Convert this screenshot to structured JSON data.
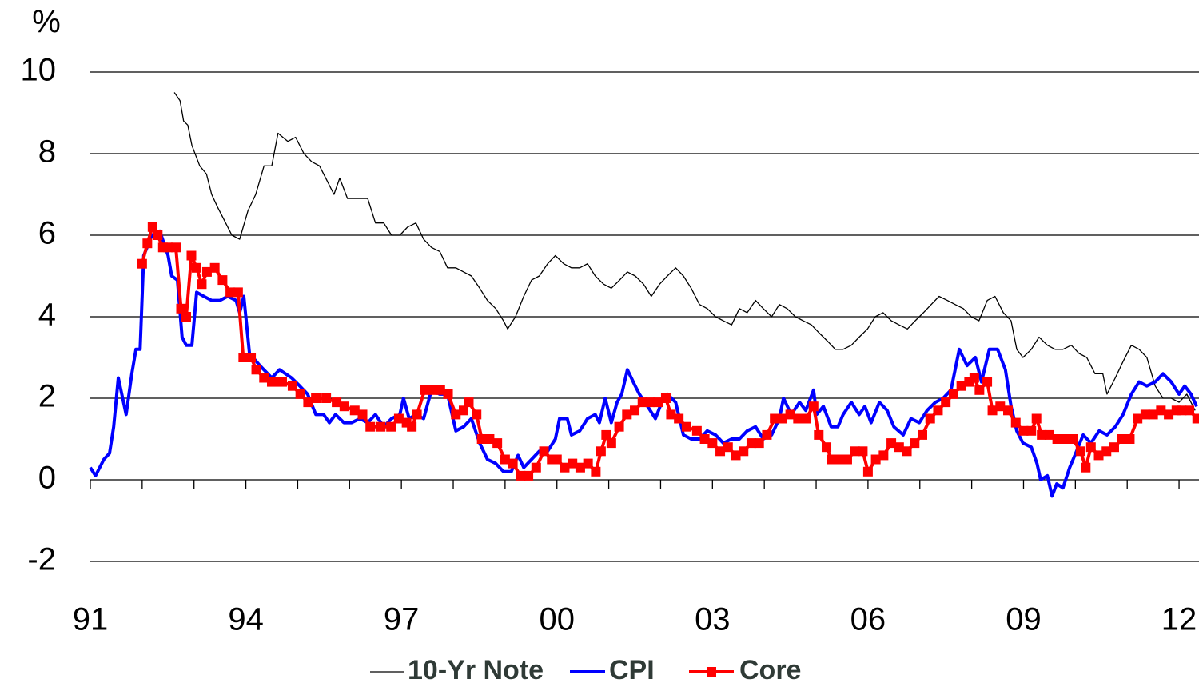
{
  "chart_data": {
    "type": "line",
    "y_unit": "%",
    "xlim": [
      1991,
      2012.4
    ],
    "xticks": [
      {
        "value": 1991,
        "label": "91"
      },
      {
        "value": 1994,
        "label": "94"
      },
      {
        "value": 1997,
        "label": "97"
      },
      {
        "value": 2000,
        "label": "00"
      },
      {
        "value": 2003,
        "label": "03"
      },
      {
        "value": 2006,
        "label": "06"
      },
      {
        "value": 2009,
        "label": "09"
      },
      {
        "value": 2012,
        "label": "12"
      }
    ],
    "x_minor_ticks": [
      1991,
      1992,
      1993,
      1994,
      1995,
      1996,
      1997,
      1998,
      1999,
      2000,
      2001,
      2002,
      2003,
      2004,
      2005,
      2006,
      2007,
      2008,
      2009,
      2010,
      2011,
      2012
    ],
    "ylim": [
      -2,
      10
    ],
    "yticks": [
      -2,
      0,
      2,
      4,
      6,
      8,
      10
    ],
    "grid": true,
    "series": [
      {
        "name": "10-Yr Note",
        "color": "#000000",
        "line_width": 1.3,
        "marker": false,
        "x": [
          1992.62,
          1992.73,
          1992.8,
          1992.88,
          1992.96,
          1993.11,
          1993.24,
          1993.34,
          1993.45,
          1993.57,
          1993.73,
          1993.88,
          1994.04,
          1994.19,
          1994.35,
          1994.5,
          1994.62,
          1994.81,
          1994.96,
          1995.12,
          1995.27,
          1995.42,
          1995.58,
          1995.7,
          1995.81,
          1995.96,
          1996.2,
          1996.35,
          1996.5,
          1996.66,
          1996.81,
          1996.97,
          1997.12,
          1997.28,
          1997.43,
          1997.58,
          1997.74,
          1997.89,
          1998.05,
          1998.2,
          1998.35,
          1998.51,
          1998.66,
          1998.82,
          1998.97,
          1999.05,
          1999.2,
          1999.36,
          1999.51,
          1999.66,
          1999.82,
          1999.97,
          2000.13,
          2000.28,
          2000.44,
          2000.59,
          2000.74,
          2000.9,
          2001.05,
          2001.21,
          2001.36,
          2001.51,
          2001.67,
          2001.82,
          2001.98,
          2002.13,
          2002.29,
          2002.44,
          2002.59,
          2002.75,
          2002.9,
          2003.06,
          2003.21,
          2003.37,
          2003.52,
          2003.67,
          2003.83,
          2003.98,
          2004.14,
          2004.29,
          2004.44,
          2004.6,
          2004.75,
          2004.91,
          2005.06,
          2005.22,
          2005.37,
          2005.52,
          2005.68,
          2005.83,
          2005.99,
          2006.14,
          2006.29,
          2006.45,
          2006.6,
          2006.76,
          2006.91,
          2007.07,
          2007.22,
          2007.37,
          2007.53,
          2007.68,
          2007.84,
          2007.99,
          2008.14,
          2008.3,
          2008.45,
          2008.61,
          2008.76,
          2008.87,
          2008.99,
          2009.15,
          2009.3,
          2009.46,
          2009.61,
          2009.76,
          2009.92,
          2010.07,
          2010.22,
          2010.38,
          2010.53,
          2010.61,
          2010.77,
          2010.92,
          2011.08,
          2011.23,
          2011.38,
          2011.54,
          2011.69,
          2011.85,
          2012.0,
          2012.15,
          2012.31
        ],
        "values": [
          9.5,
          9.3,
          8.8,
          8.7,
          8.2,
          7.7,
          7.5,
          7.0,
          6.7,
          6.4,
          6.0,
          5.9,
          6.6,
          7.0,
          7.7,
          7.7,
          8.5,
          8.3,
          8.4,
          8.0,
          7.8,
          7.7,
          7.3,
          7.0,
          7.4,
          6.9,
          6.9,
          6.9,
          6.3,
          6.3,
          6.0,
          6.0,
          6.2,
          6.3,
          5.9,
          5.7,
          5.6,
          5.2,
          5.2,
          5.1,
          5.0,
          4.7,
          4.4,
          4.2,
          3.9,
          3.7,
          4.0,
          4.5,
          4.9,
          5.0,
          5.3,
          5.5,
          5.3,
          5.2,
          5.2,
          5.3,
          5.0,
          4.8,
          4.7,
          4.9,
          5.1,
          5.0,
          4.8,
          4.5,
          4.8,
          5.0,
          5.2,
          5.0,
          4.7,
          4.3,
          4.2,
          4.0,
          3.9,
          3.8,
          4.2,
          4.1,
          4.4,
          4.2,
          4.0,
          4.3,
          4.2,
          4.0,
          3.9,
          3.8,
          3.6,
          3.4,
          3.2,
          3.2,
          3.3,
          3.5,
          3.7,
          4.0,
          4.1,
          3.9,
          3.8,
          3.7,
          3.9,
          4.1,
          4.3,
          4.5,
          4.4,
          4.3,
          4.2,
          4.0,
          3.9,
          4.4,
          4.5,
          4.1,
          3.9,
          3.2,
          3.0,
          3.2,
          3.5,
          3.3,
          3.2,
          3.2,
          3.3,
          3.1,
          3.0,
          2.6,
          2.6,
          2.1,
          2.5,
          2.9,
          3.3,
          3.2,
          3.0,
          2.3,
          2.0,
          2.0,
          1.9,
          2.1,
          1.7
        ]
      },
      {
        "name": "CPI",
        "color": "#0000ff",
        "line_width": 4,
        "marker": false,
        "x": [
          1991.0,
          1991.1,
          1991.26,
          1991.37,
          1991.45,
          1991.54,
          1991.69,
          1991.8,
          1991.88,
          1991.96,
          1992.03,
          1992.19,
          1992.34,
          1992.5,
          1992.57,
          1992.68,
          1992.77,
          1992.85,
          1992.96,
          1993.05,
          1993.19,
          1993.34,
          1993.5,
          1993.65,
          1993.81,
          1993.88,
          1993.96,
          1994.07,
          1994.27,
          1994.5,
          1994.65,
          1994.88,
          1995.04,
          1995.19,
          1995.35,
          1995.5,
          1995.61,
          1995.73,
          1995.89,
          1996.04,
          1996.2,
          1996.35,
          1996.5,
          1996.66,
          1996.81,
          1996.97,
          1997.04,
          1997.15,
          1997.28,
          1997.43,
          1997.58,
          1997.74,
          1997.89,
          1998.05,
          1998.2,
          1998.35,
          1998.51,
          1998.66,
          1998.82,
          1998.97,
          1999.12,
          1999.25,
          1999.36,
          1999.51,
          1999.66,
          1999.82,
          1999.97,
          2000.05,
          2000.2,
          2000.28,
          2000.44,
          2000.59,
          2000.74,
          2000.82,
          2000.93,
          2001.05,
          2001.16,
          2001.25,
          2001.36,
          2001.51,
          2001.59,
          2001.75,
          2001.9,
          2002.02,
          2002.13,
          2002.29,
          2002.44,
          2002.59,
          2002.75,
          2002.9,
          2003.06,
          2003.21,
          2003.37,
          2003.52,
          2003.67,
          2003.83,
          2003.98,
          2004.14,
          2004.29,
          2004.37,
          2004.52,
          2004.68,
          2004.8,
          2004.95,
          2005.01,
          2005.14,
          2005.29,
          2005.42,
          2005.52,
          2005.68,
          2005.83,
          2005.94,
          2006.06,
          2006.22,
          2006.37,
          2006.5,
          2006.68,
          2006.83,
          2006.99,
          2007.14,
          2007.3,
          2007.45,
          2007.6,
          2007.76,
          2007.91,
          2008.07,
          2008.19,
          2008.34,
          2008.5,
          2008.65,
          2008.76,
          2008.87,
          2008.99,
          2009.15,
          2009.26,
          2009.33,
          2009.46,
          2009.55,
          2009.64,
          2009.76,
          2009.89,
          2009.99,
          2010.15,
          2010.3,
          2010.46,
          2010.61,
          2010.77,
          2010.92,
          2011.08,
          2011.23,
          2011.38,
          2011.54,
          2011.69,
          2011.85,
          2012.0,
          2012.11,
          2012.23,
          2012.34
        ],
        "values": [
          0.3,
          0.1,
          0.5,
          0.65,
          1.3,
          2.5,
          1.6,
          2.6,
          3.2,
          3.2,
          5.5,
          6.0,
          6.1,
          5.5,
          5.0,
          4.9,
          3.5,
          3.3,
          3.3,
          4.6,
          4.5,
          4.4,
          4.4,
          4.5,
          4.4,
          4.1,
          4.5,
          3.1,
          2.8,
          2.5,
          2.7,
          2.5,
          2.3,
          2.1,
          1.6,
          1.6,
          1.4,
          1.6,
          1.4,
          1.4,
          1.5,
          1.4,
          1.6,
          1.3,
          1.5,
          1.6,
          2.0,
          1.5,
          1.6,
          1.5,
          2.2,
          2.1,
          2.1,
          1.2,
          1.3,
          1.5,
          0.9,
          0.5,
          0.4,
          0.2,
          0.2,
          0.6,
          0.3,
          0.5,
          0.7,
          0.7,
          1.0,
          1.5,
          1.5,
          1.1,
          1.2,
          1.5,
          1.6,
          1.4,
          2.0,
          1.4,
          1.9,
          2.1,
          2.7,
          2.3,
          2.1,
          1.8,
          1.5,
          1.9,
          2.1,
          1.9,
          1.1,
          1.0,
          1.0,
          1.2,
          1.1,
          0.9,
          1.0,
          1.0,
          1.2,
          1.3,
          1.0,
          1.1,
          1.5,
          2.0,
          1.6,
          1.9,
          1.7,
          2.2,
          1.6,
          1.8,
          1.3,
          1.3,
          1.6,
          1.9,
          1.6,
          1.8,
          1.4,
          1.9,
          1.7,
          1.3,
          1.1,
          1.5,
          1.4,
          1.7,
          1.9,
          2.0,
          2.2,
          3.2,
          2.8,
          3.0,
          2.4,
          3.2,
          3.2,
          2.7,
          1.8,
          1.2,
          0.9,
          0.8,
          0.4,
          0.0,
          0.1,
          -0.4,
          -0.1,
          -0.2,
          0.3,
          0.6,
          1.1,
          0.9,
          1.2,
          1.1,
          1.3,
          1.6,
          2.1,
          2.4,
          2.3,
          2.4,
          2.6,
          2.4,
          2.1,
          2.3,
          2.1,
          1.8
        ]
      },
      {
        "name": "Core",
        "color": "#ff0000",
        "line_width": 4,
        "marker": true,
        "x": [
          1992.0,
          1992.1,
          1992.2,
          1992.3,
          1992.4,
          1992.5,
          1992.65,
          1992.75,
          1992.85,
          1992.95,
          1993.05,
          1993.15,
          1993.25,
          1993.4,
          1993.55,
          1993.7,
          1993.85,
          1993.95,
          1994.1,
          1994.2,
          1994.35,
          1994.5,
          1994.7,
          1994.9,
          1995.05,
          1995.2,
          1995.35,
          1995.55,
          1995.75,
          1995.9,
          1996.1,
          1996.25,
          1996.4,
          1996.6,
          1996.8,
          1996.95,
          1997.1,
          1997.2,
          1997.3,
          1997.45,
          1997.6,
          1997.75,
          1997.9,
          1998.05,
          1998.2,
          1998.3,
          1998.45,
          1998.55,
          1998.7,
          1998.85,
          1999.0,
          1999.15,
          1999.3,
          1999.45,
          1999.6,
          1999.75,
          1999.9,
          2000.0,
          2000.15,
          2000.3,
          2000.45,
          2000.6,
          2000.75,
          2000.85,
          2000.95,
          2001.05,
          2001.2,
          2001.35,
          2001.5,
          2001.65,
          2001.8,
          2001.95,
          2002.1,
          2002.2,
          2002.35,
          2002.5,
          2002.7,
          2002.85,
          2003.0,
          2003.15,
          2003.3,
          2003.45,
          2003.6,
          2003.75,
          2003.9,
          2004.05,
          2004.2,
          2004.35,
          2004.5,
          2004.65,
          2004.8,
          2004.95,
          2005.05,
          2005.2,
          2005.3,
          2005.45,
          2005.6,
          2005.75,
          2005.9,
          2006.0,
          2006.15,
          2006.3,
          2006.45,
          2006.6,
          2006.75,
          2006.9,
          2007.05,
          2007.2,
          2007.35,
          2007.5,
          2007.65,
          2007.8,
          2007.95,
          2008.05,
          2008.15,
          2008.3,
          2008.4,
          2008.55,
          2008.7,
          2008.85,
          2009.0,
          2009.15,
          2009.25,
          2009.35,
          2009.5,
          2009.65,
          2009.8,
          2009.95,
          2010.1,
          2010.2,
          2010.3,
          2010.45,
          2010.6,
          2010.75,
          2010.9,
          2011.05,
          2011.2,
          2011.35,
          2011.5,
          2011.65,
          2011.8,
          2011.95,
          2012.05,
          2012.2,
          2012.35
        ],
        "values": [
          5.3,
          5.8,
          6.2,
          6.0,
          5.7,
          5.7,
          5.7,
          4.2,
          4.0,
          5.5,
          5.2,
          4.8,
          5.1,
          5.2,
          4.9,
          4.6,
          4.6,
          3.0,
          3.0,
          2.7,
          2.5,
          2.4,
          2.4,
          2.3,
          2.1,
          1.9,
          2.0,
          2.0,
          1.9,
          1.8,
          1.7,
          1.6,
          1.3,
          1.3,
          1.3,
          1.5,
          1.4,
          1.3,
          1.6,
          2.2,
          2.2,
          2.2,
          2.1,
          1.6,
          1.7,
          1.9,
          1.6,
          1.0,
          1.0,
          0.9,
          0.5,
          0.4,
          0.1,
          0.1,
          0.3,
          0.7,
          0.5,
          0.5,
          0.3,
          0.4,
          0.3,
          0.4,
          0.2,
          0.7,
          1.1,
          0.9,
          1.3,
          1.6,
          1.7,
          1.9,
          1.9,
          1.9,
          2.0,
          1.6,
          1.5,
          1.3,
          1.2,
          1.0,
          0.9,
          0.7,
          0.8,
          0.6,
          0.7,
          0.9,
          0.9,
          1.1,
          1.5,
          1.5,
          1.6,
          1.5,
          1.5,
          1.8,
          1.1,
          0.8,
          0.5,
          0.5,
          0.5,
          0.7,
          0.7,
          0.2,
          0.5,
          0.6,
          0.9,
          0.8,
          0.7,
          0.9,
          1.1,
          1.5,
          1.7,
          1.9,
          2.1,
          2.3,
          2.4,
          2.5,
          2.2,
          2.4,
          1.7,
          1.8,
          1.7,
          1.4,
          1.2,
          1.2,
          1.5,
          1.1,
          1.1,
          1.0,
          1.0,
          1.0,
          0.7,
          0.3,
          0.8,
          0.6,
          0.7,
          0.8,
          1.0,
          1.0,
          1.5,
          1.6,
          1.6,
          1.7,
          1.6,
          1.7,
          1.7,
          1.7,
          1.5
        ]
      }
    ]
  }
}
